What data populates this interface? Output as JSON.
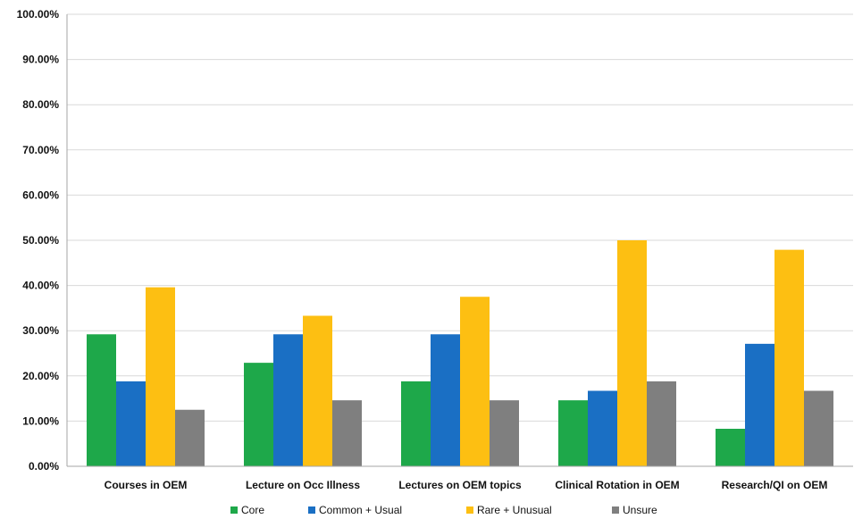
{
  "chart_data": {
    "type": "bar",
    "title": "",
    "xlabel": "",
    "ylabel": "",
    "categories": [
      "Courses in OEM",
      "Lecture on Occ Illness",
      "Lectures on OEM topics",
      "Clinical Rotation in OEM",
      "Research/QI on OEM"
    ],
    "series": [
      {
        "name": "Core",
        "color": "#1ea84a",
        "values": [
          29.2,
          22.9,
          18.8,
          14.6,
          8.3
        ]
      },
      {
        "name": "Common + Usual",
        "color": "#1a6fc4",
        "values": [
          18.8,
          29.2,
          29.2,
          16.7,
          27.1
        ]
      },
      {
        "name": "Rare + Unusual",
        "color": "#fdbf12",
        "values": [
          39.6,
          33.3,
          37.5,
          50.0,
          47.9
        ]
      },
      {
        "name": "Unsure",
        "color": "#7f7f7f",
        "values": [
          12.5,
          14.6,
          14.6,
          18.8,
          16.7
        ]
      }
    ],
    "ylim": [
      0,
      100
    ],
    "yticks": [
      "0.00%",
      "10.00%",
      "20.00%",
      "30.00%",
      "40.00%",
      "50.00%",
      "60.00%",
      "70.00%",
      "80.00%",
      "90.00%",
      "100.00%"
    ],
    "grid": true,
    "legend_position": "bottom"
  }
}
